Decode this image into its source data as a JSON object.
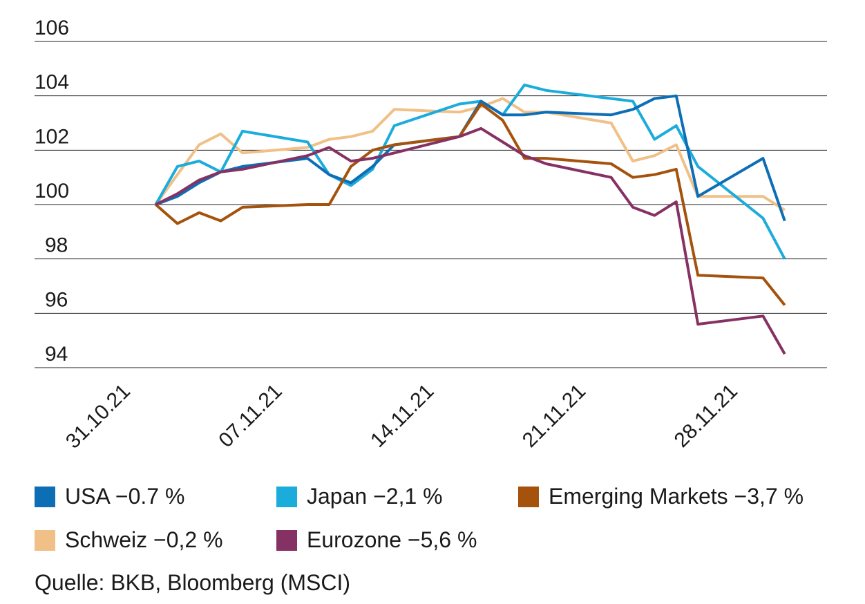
{
  "chart_data": {
    "type": "line",
    "title": "",
    "xlabel": "",
    "ylabel": "",
    "ylim": [
      94,
      106
    ],
    "yticks": [
      94,
      96,
      98,
      100,
      102,
      104,
      106
    ],
    "grid": true,
    "legend_position": "bottom",
    "x": [
      "2021-11-01",
      "2021-11-02",
      "2021-11-03",
      "2021-11-04",
      "2021-11-05",
      "2021-11-08",
      "2021-11-09",
      "2021-11-10",
      "2021-11-11",
      "2021-11-12",
      "2021-11-15",
      "2021-11-16",
      "2021-11-17",
      "2021-11-18",
      "2021-11-19",
      "2021-11-22",
      "2021-11-23",
      "2021-11-24",
      "2021-11-25",
      "2021-11-26",
      "2021-11-29",
      "2021-11-30"
    ],
    "x_ticks": [
      {
        "date": "2021-10-31",
        "label": "31.10.21"
      },
      {
        "date": "2021-11-07",
        "label": "07.11.21"
      },
      {
        "date": "2021-11-14",
        "label": "14.11.21"
      },
      {
        "date": "2021-11-21",
        "label": "21.11.21"
      },
      {
        "date": "2021-11-28",
        "label": "28.11.21"
      }
    ],
    "series": [
      {
        "name": "USA −0.7 %",
        "color": "#0d6eb5",
        "values": [
          100.0,
          100.3,
          100.8,
          101.2,
          101.4,
          101.7,
          101.1,
          100.8,
          101.4,
          102.2,
          102.5,
          103.8,
          103.3,
          103.3,
          103.4,
          103.3,
          103.5,
          103.9,
          104.0,
          100.3,
          101.7,
          99.4
        ]
      },
      {
        "name": "Japan −2,1 %",
        "color": "#1cacdc",
        "values": [
          100.0,
          101.4,
          101.6,
          101.2,
          102.7,
          102.3,
          101.1,
          100.7,
          101.3,
          102.9,
          103.7,
          103.8,
          103.3,
          104.4,
          104.2,
          103.9,
          103.8,
          102.4,
          102.9,
          101.4,
          99.5,
          98.0
        ]
      },
      {
        "name": "Emerging Markets −3,7 %",
        "color": "#a4520c",
        "values": [
          100.0,
          99.3,
          99.7,
          99.4,
          99.9,
          100.0,
          100.0,
          101.4,
          102.0,
          102.2,
          102.5,
          103.7,
          103.1,
          101.7,
          101.7,
          101.5,
          101.0,
          101.1,
          101.3,
          97.4,
          97.3,
          96.3
        ]
      },
      {
        "name": "Schweiz −0,2 %",
        "color": "#f0c087",
        "values": [
          100.0,
          101.1,
          102.2,
          102.6,
          101.9,
          102.1,
          102.4,
          102.5,
          102.7,
          103.5,
          103.4,
          103.6,
          103.9,
          103.4,
          103.4,
          103.0,
          101.6,
          101.8,
          102.2,
          100.3,
          100.3,
          99.8
        ]
      },
      {
        "name": "Eurozone −5,6 %",
        "color": "#863163",
        "values": [
          100.0,
          100.4,
          100.9,
          101.2,
          101.3,
          101.8,
          102.1,
          101.6,
          101.7,
          101.9,
          102.5,
          102.8,
          102.3,
          101.8,
          101.5,
          101.0,
          99.9,
          99.6,
          100.1,
          95.6,
          95.9,
          94.5
        ]
      }
    ]
  },
  "source": "Quelle: BKB, Bloomberg (MSCI)"
}
